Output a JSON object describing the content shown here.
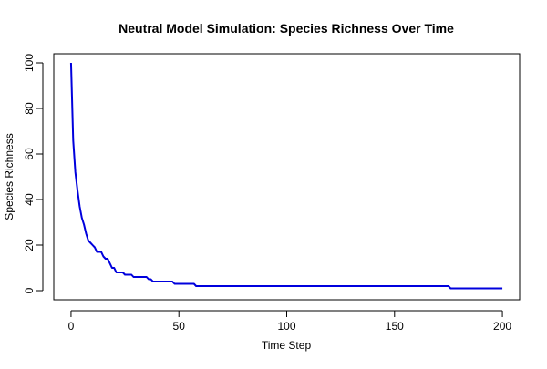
{
  "chart_data": {
    "type": "line",
    "title": "Neutral Model Simulation: Species Richness Over Time",
    "xlabel": "Time Step",
    "ylabel": "Species Richness",
    "xlim": [
      -8,
      208
    ],
    "ylim": [
      -4,
      104
    ],
    "xticks": [
      0,
      50,
      100,
      150,
      200
    ],
    "yticks": [
      0,
      20,
      40,
      60,
      80,
      100
    ],
    "grid": false,
    "series": [
      {
        "color": "#0000dd",
        "x": [
          0,
          1,
          2,
          3,
          4,
          5,
          6,
          7,
          8,
          9,
          10,
          11,
          12,
          13,
          14,
          15,
          16,
          17,
          18,
          19,
          20,
          21,
          22,
          23,
          24,
          25,
          26,
          27,
          28,
          29,
          30,
          31,
          32,
          33,
          34,
          35,
          36,
          37,
          38,
          39,
          40,
          41,
          42,
          43,
          44,
          45,
          46,
          47,
          48,
          49,
          50,
          51,
          52,
          53,
          54,
          55,
          56,
          57,
          58,
          175,
          176,
          200
        ],
        "y": [
          100,
          66,
          52,
          44,
          37,
          32,
          29,
          25,
          22,
          21,
          20,
          19,
          17,
          17,
          17,
          15,
          14,
          14,
          12,
          10,
          10,
          8,
          8,
          8,
          8,
          7,
          7,
          7,
          7,
          6,
          6,
          6,
          6,
          6,
          6,
          6,
          5,
          5,
          4,
          4,
          4,
          4,
          4,
          4,
          4,
          4,
          4,
          4,
          3,
          3,
          3,
          3,
          3,
          3,
          3,
          3,
          3,
          3,
          2,
          2,
          1,
          1
        ]
      }
    ]
  }
}
